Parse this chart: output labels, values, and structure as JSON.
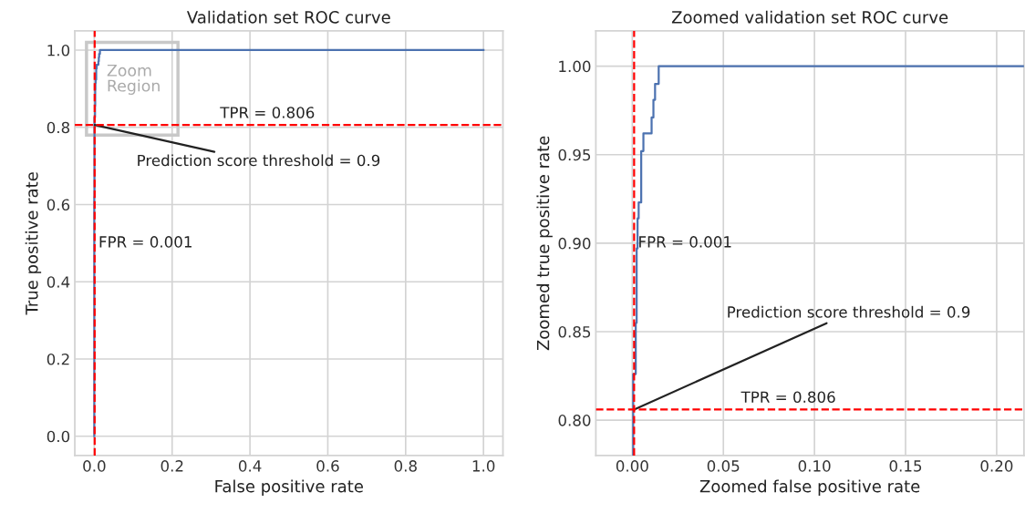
{
  "chart_data": [
    {
      "type": "line",
      "title": "Validation set ROC curve",
      "xlabel": "False positive rate",
      "ylabel": "True positive rate",
      "xlim": [
        -0.05,
        1.05
      ],
      "ylim": [
        -0.05,
        1.05
      ],
      "xticks": [
        {
          "value": 0,
          "label": "0.0"
        },
        0.2,
        0.4,
        0.6,
        0.8,
        {
          "value": 1,
          "label": "1.0"
        }
      ],
      "yticks": [
        {
          "value": 0,
          "label": "0.0"
        },
        0.2,
        0.4,
        0.6,
        0.8,
        {
          "value": 1,
          "label": "1.0"
        }
      ],
      "grid": true,
      "series": [
        {
          "color": "#4c72b0",
          "x": [
            0,
            0,
            0.0005,
            0.0005,
            0.0019,
            0.0019,
            0.0024,
            0.0024,
            0.0029,
            0.0029,
            0.0035,
            0.0035,
            0.0049,
            0.0049,
            0.0061,
            0.0061,
            0.0106,
            0.0106,
            0.0116,
            0.0116,
            0.0125,
            0.0125,
            0.0145,
            0.0145,
            1
          ],
          "values": [
            0,
            0.62,
            0.62,
            0.826,
            0.826,
            0.855,
            0.855,
            0.897,
            0.897,
            0.914,
            0.914,
            0.923,
            0.923,
            0.952,
            0.952,
            0.962,
            0.962,
            0.971,
            0.971,
            0.981,
            0.981,
            0.99,
            0.99,
            1,
            1
          ]
        }
      ],
      "ref_lines": [
        {
          "axis": "y",
          "value": 0.806,
          "label": "TPR = 0.806",
          "color": "#ff0000",
          "line_style": "dashed"
        },
        {
          "axis": "x",
          "value": 0.001,
          "label": "FPR = 0.001",
          "color": "#ff0000",
          "line_style": "dashed"
        }
      ],
      "annotations": [
        {
          "text": "Prediction score threshold = 0.9",
          "x": 0.001,
          "y": 0.806
        },
        "Zoom Region"
      ]
    },
    {
      "type": "line",
      "title": "Zoomed validation set ROC curve",
      "xlabel": "Zoomed false positive rate",
      "ylabel": "Zoomed true positive rate",
      "xlim": [
        -0.02,
        0.215
      ],
      "ylim": [
        0.78,
        1.02
      ],
      "xticks": [
        {
          "value": 0,
          "label": "0.00"
        },
        0.05,
        {
          "value": 0.1,
          "label": "0.10"
        },
        0.15,
        {
          "value": 0.2,
          "label": "0.20"
        }
      ],
      "yticks": [
        {
          "value": 0.8,
          "label": "0.80"
        },
        0.85,
        {
          "value": 0.9,
          "label": "0.90"
        },
        0.95,
        {
          "value": 1,
          "label": "1.00"
        }
      ],
      "grid": true,
      "series": [
        {
          "color": "#4c72b0",
          "x": [
            0.0005,
            0.0005,
            0.0019,
            0.0019,
            0.0024,
            0.0024,
            0.0029,
            0.0029,
            0.0035,
            0.0035,
            0.0049,
            0.0049,
            0.0061,
            0.0061,
            0.0106,
            0.0106,
            0.0116,
            0.0116,
            0.0125,
            0.0125,
            0.0145,
            0.0145,
            0.215
          ],
          "values": [
            0.78,
            0.826,
            0.826,
            0.855,
            0.855,
            0.897,
            0.897,
            0.914,
            0.914,
            0.923,
            0.923,
            0.952,
            0.952,
            0.962,
            0.962,
            0.971,
            0.971,
            0.981,
            0.981,
            0.99,
            0.99,
            1,
            1
          ]
        }
      ],
      "ref_lines": [
        {
          "axis": "y",
          "value": 0.806,
          "label": "TPR = 0.806",
          "color": "#ff0000",
          "line_style": "dashed"
        },
        {
          "axis": "x",
          "value": 0.001,
          "label": "FPR = 0.001",
          "color": "#ff0000",
          "line_style": "dashed"
        }
      ],
      "annotations": [
        {
          "text": "Prediction score threshold = 0.9",
          "x": 0.001,
          "y": 0.806
        }
      ]
    }
  ]
}
